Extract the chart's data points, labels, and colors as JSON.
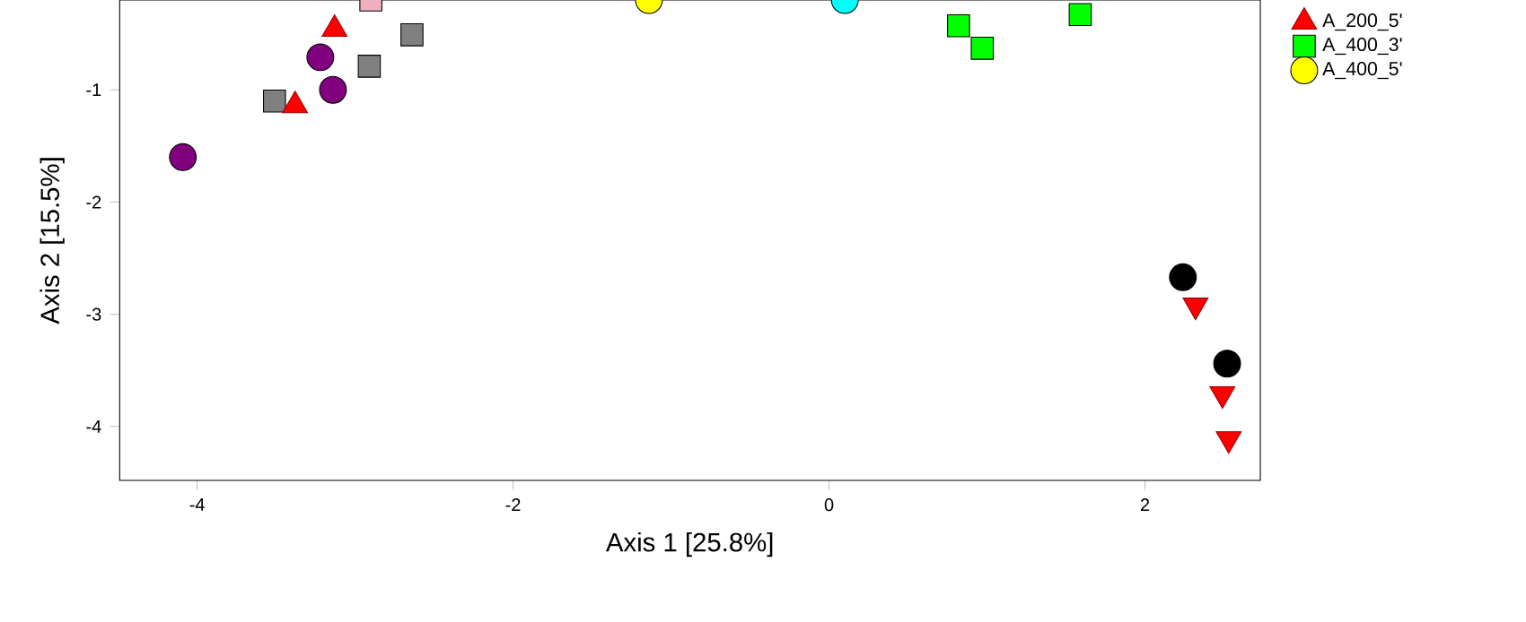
{
  "chart_data": {
    "type": "scatter",
    "xlabel": "Axis 1 [25.8%]",
    "ylabel": "Axis 2 [15.5%]",
    "xlim": [
      -4.49,
      2.73
    ],
    "ylim": [
      -4.48,
      -0.2
    ],
    "xticks": [
      -4,
      -2,
      0,
      2
    ],
    "yticks": [
      -4,
      -3,
      -2,
      -1
    ],
    "grid": false,
    "legend": "top right",
    "series": [
      {
        "color": "#808080",
        "marker": "square",
        "x": [
          -3.51,
          -2.91,
          -2.64
        ],
        "values": [
          -1.1,
          -0.79,
          -0.51
        ]
      },
      {
        "color": "#800080",
        "marker": "circle",
        "x": [
          -4.09,
          -3.22,
          -3.14
        ],
        "values": [
          -1.6,
          -0.71,
          -1.0
        ]
      },
      {
        "name": "A_200_5'",
        "color": "#ff0000",
        "marker": "triangle",
        "x": [
          -3.38,
          -3.13
        ],
        "values": [
          -1.14,
          -0.46
        ]
      },
      {
        "color": "#f0b0c0",
        "marker": "square",
        "x": [
          -2.9
        ],
        "values": [
          -0.2
        ]
      },
      {
        "name": "A_400_3'",
        "color": "#00ff00",
        "marker": "square",
        "x": [
          0.82,
          0.97,
          1.59
        ],
        "values": [
          -0.43,
          -0.63,
          -0.33
        ]
      },
      {
        "name": "A_400_5'",
        "color": "#ffff00",
        "marker": "circle",
        "x": [
          -1.14
        ],
        "values": [
          -0.2
        ]
      },
      {
        "color": "#00ffff",
        "marker": "circle",
        "x": [
          0.1
        ],
        "values": [
          -0.2
        ]
      },
      {
        "color": "#000000",
        "marker": "circle",
        "x": [
          2.24,
          2.52
        ],
        "values": [
          -2.67,
          -3.44
        ]
      },
      {
        "color": "#ff0000",
        "marker": "triangle_down",
        "x": [
          2.32,
          2.49,
          2.53
        ],
        "values": [
          -2.92,
          -3.71,
          -4.11
        ]
      }
    ]
  }
}
